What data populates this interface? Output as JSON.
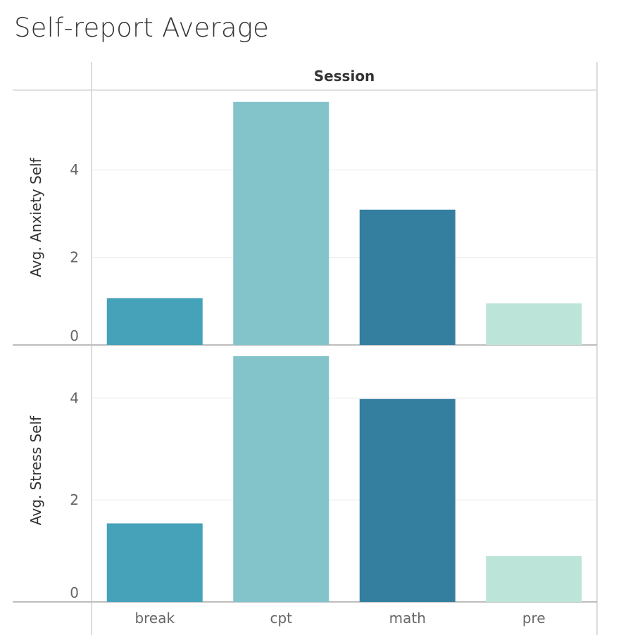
{
  "title": "Self-report Average",
  "chart_data": {
    "type": "bar",
    "title": "Self-report Average",
    "column_header": "Session",
    "categories": [
      "break",
      "cpt",
      "math",
      "pre"
    ],
    "colors": [
      "#45a2b9",
      "#83c3ca",
      "#347e9f",
      "#bde4d9"
    ],
    "panels": [
      {
        "ylabel": "Avg. Anxiety Self",
        "values": [
          1.07,
          5.55,
          3.09,
          0.95
        ],
        "ylim": [
          0,
          5.82
        ],
        "yticks": [
          0,
          2,
          4
        ]
      },
      {
        "ylabel": "Avg. Stress Self",
        "values": [
          1.54,
          4.82,
          3.98,
          0.9
        ],
        "ylim": [
          0,
          5.04
        ],
        "yticks": [
          0,
          2,
          4
        ]
      }
    ],
    "grid": true,
    "legend": "none"
  }
}
